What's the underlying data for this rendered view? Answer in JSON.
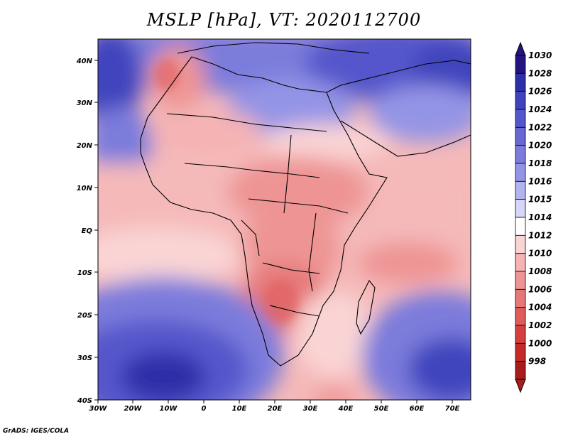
{
  "title": "MSLP [hPa], VT: 2020112700",
  "credit": "GrADS: IGES/COLA",
  "map": {
    "region": "Africa",
    "field": "Mean Sea Level Pressure"
  },
  "axes": {
    "x_labels": [
      "30W",
      "20W",
      "10W",
      "0",
      "10E",
      "20E",
      "30E",
      "40E",
      "50E",
      "60E",
      "70E"
    ],
    "y_labels": [
      "40N",
      "30N",
      "20N",
      "10N",
      "EQ",
      "10S",
      "20S",
      "30S",
      "40S"
    ]
  },
  "colorbar": {
    "labels": [
      "1030",
      "1028",
      "1026",
      "1024",
      "1022",
      "1020",
      "1018",
      "1016",
      "1015",
      "1014",
      "1012",
      "1010",
      "1008",
      "1006",
      "1004",
      "1002",
      "1000",
      "998"
    ],
    "colors": [
      "#241480",
      "#2d2fa8",
      "#3f44bd",
      "#5457cb",
      "#6868d4",
      "#7c7cdc",
      "#9494e6",
      "#b3b3f0",
      "#d6d6f7",
      "#ffffff",
      "#fad4d4",
      "#f5b3b3",
      "#ee9494",
      "#e67878",
      "#df5c5c",
      "#d63f3f",
      "#c42a2a",
      "#a81c1c"
    ]
  }
}
